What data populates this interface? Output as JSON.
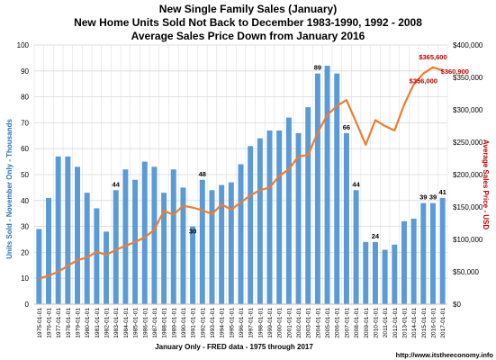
{
  "chart_data": {
    "type": "bar",
    "title": [
      "New Single Family Sales (January)",
      "New Home Units Sold Not Back to December 1983-1990, 1992 - 2008",
      "Average Sales Price Down from  January 2016"
    ],
    "xlabel": "January Only - FRED data - 1975 through 2017",
    "ylabel_left": "Units Sold - November  Only - Thousands",
    "ylabel_right": "Average Sales Price - USD",
    "source": "http://www.itstheeconomy.info",
    "categories": [
      "1975-01-01",
      "1976-01-01",
      "1977-01-01",
      "1978-01-01",
      "1979-01-01",
      "1980-01-01",
      "1981-01-01",
      "1982-01-01",
      "1983-01-01",
      "1984-01-01",
      "1985-01-01",
      "1986-01-01",
      "1987-01-01",
      "1988-01-01",
      "1989-01-01",
      "1990-01-01",
      "1991-01-01",
      "1992-01-01",
      "1993-01-01",
      "1994-01-01",
      "1995-01-01",
      "1996-01-01",
      "1997-01-01",
      "1998-01-01",
      "1999-01-01",
      "2000-01-01",
      "2001-01-01",
      "2002-01-01",
      "2003-01-01",
      "2004-01-01",
      "2005-01-01",
      "2006-01-01",
      "2007-01-01",
      "2008-01-01",
      "2009-01-01",
      "2010-01-01",
      "2011-01-01",
      "2012-01-01",
      "2013-01-01",
      "2014-01-01",
      "2015-01-01",
      "2016-01-01",
      "2017-01-01"
    ],
    "series": [
      {
        "type": "bar",
        "axis": "left",
        "color": "#5b9bd5",
        "values": [
          29,
          41,
          57,
          57,
          53,
          43,
          37,
          28,
          44,
          52,
          48,
          55,
          53,
          43,
          52,
          45,
          30,
          48,
          44,
          46,
          47,
          54,
          61,
          64,
          67,
          67,
          72,
          66,
          76,
          89,
          92,
          89,
          66,
          44,
          24,
          24,
          21,
          23,
          32,
          33,
          39,
          39,
          41
        ]
      },
      {
        "type": "line",
        "axis": "right",
        "color": "#ed7d31",
        "values": [
          39500,
          44000,
          50000,
          59500,
          68000,
          72000,
          81000,
          76000,
          84000,
          90000,
          96000,
          103000,
          115000,
          144000,
          138000,
          152000,
          149000,
          145000,
          139000,
          154000,
          146000,
          157000,
          168000,
          176000,
          180000,
          198000,
          208000,
          228000,
          230000,
          265000,
          292000,
          306000,
          315000,
          281000,
          246000,
          284000,
          275000,
          268000,
          308000,
          339000,
          356000,
          365600,
          360900
        ]
      }
    ],
    "bar_labels": [
      {
        "category": "1983-01-01",
        "text": "44"
      },
      {
        "category": "1992-01-01",
        "text": "48"
      },
      {
        "category": "1991-01-01",
        "text": "30"
      },
      {
        "category": "2004-01-01",
        "text": "89"
      },
      {
        "category": "2007-01-01",
        "text": "66"
      },
      {
        "category": "2008-01-01",
        "text": "44"
      },
      {
        "category": "2010-01-01",
        "text": "24"
      },
      {
        "category": "2015-01-01",
        "text": "39"
      },
      {
        "category": "2016-01-01",
        "text": "39"
      },
      {
        "category": "2017-01-01",
        "text": "41"
      }
    ],
    "line_labels": [
      {
        "category": "2016-01-01",
        "text": "$365,600"
      },
      {
        "category": "2015-01-01",
        "text": "$356,000"
      },
      {
        "category": "2017-01-01",
        "text": "$360,900"
      }
    ],
    "ylim_left": [
      0,
      100
    ],
    "yticks_left": [
      "0",
      "10",
      "20",
      "30",
      "40",
      "50",
      "60",
      "70",
      "80",
      "90",
      "100"
    ],
    "ylim_right": [
      0,
      400000
    ],
    "yticks_right": [
      "$0",
      "$50,000",
      "$100,000",
      "$150,000",
      "$200,000",
      "$250,000",
      "$300,000",
      "$350,000",
      "$400,000"
    ],
    "grid": true,
    "colors": {
      "bar": "#5b9bd5",
      "line": "#ed7d31",
      "line_label": "#c00000",
      "grid": "#d9d9d9"
    }
  }
}
